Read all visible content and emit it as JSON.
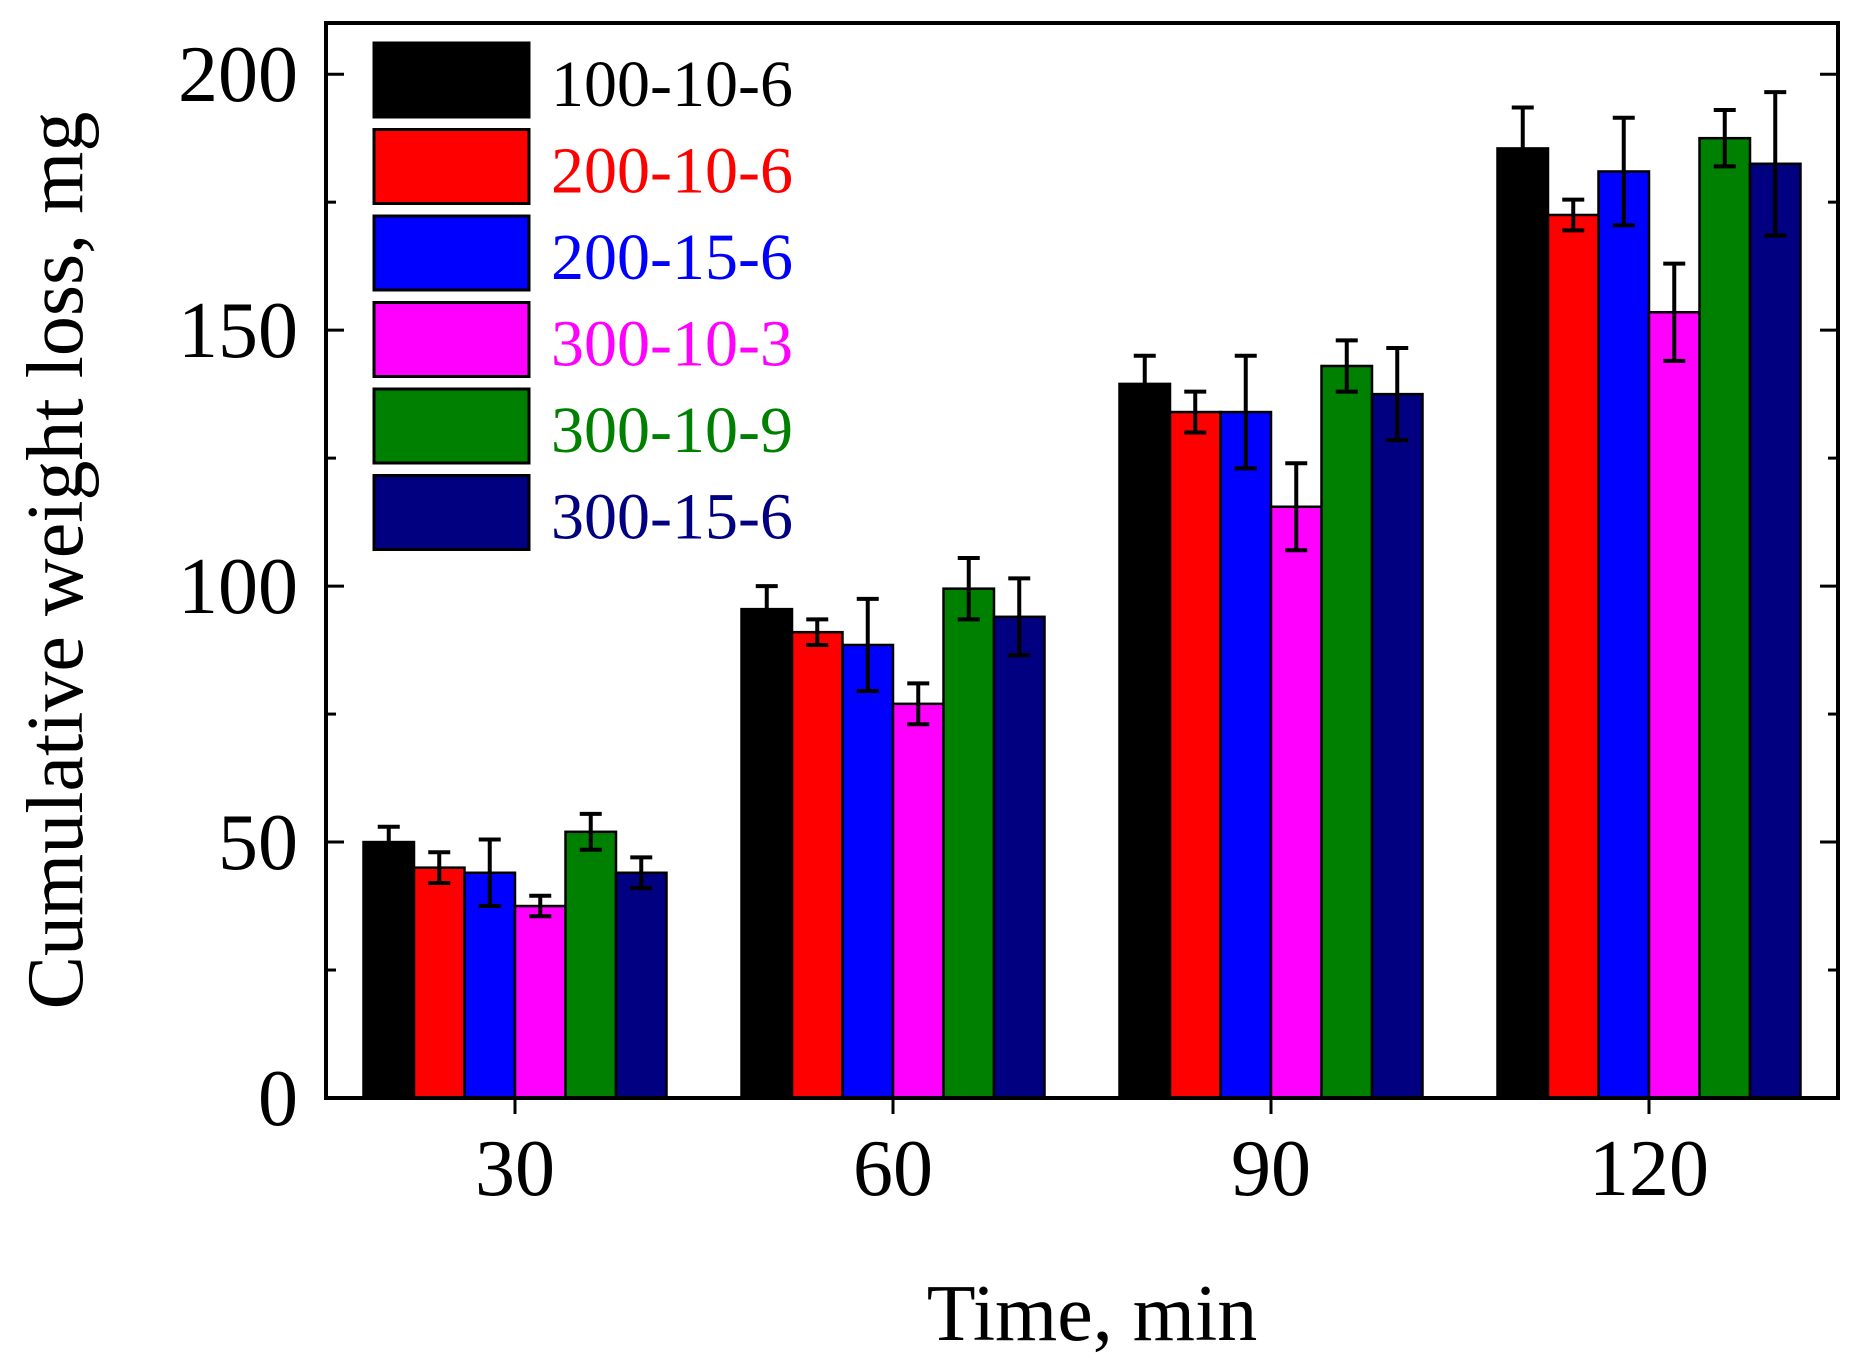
{
  "chart_data": {
    "type": "bar",
    "title": "",
    "xlabel": "Time, min",
    "ylabel": "Cumulative weight loss, mg",
    "categories": [
      "30",
      "60",
      "90",
      "120"
    ],
    "ylim": [
      0,
      210
    ],
    "yticks": [
      "0",
      "50",
      "100",
      "150",
      "200"
    ],
    "grid": false,
    "legend_position": "top-left",
    "series": [
      {
        "name": "100-10-6",
        "color": "#000000",
        "values": [
          50,
          95.5,
          139.5,
          185.5
        ],
        "errors": [
          3,
          4.5,
          5.5,
          8
        ]
      },
      {
        "name": "200-10-6",
        "color": "#ff0000",
        "values": [
          45,
          91,
          134,
          172.5
        ],
        "errors": [
          3,
          2.5,
          4,
          3
        ]
      },
      {
        "name": "200-15-6",
        "color": "#0000ff",
        "values": [
          44,
          88.5,
          134,
          181
        ],
        "errors": [
          6.5,
          9,
          11,
          10.5
        ]
      },
      {
        "name": "300-10-3",
        "color": "#ff00ff",
        "values": [
          37.5,
          77,
          115.5,
          153.5
        ],
        "errors": [
          2,
          4,
          8.5,
          9.5
        ]
      },
      {
        "name": "300-10-9",
        "color": "#008000",
        "values": [
          52,
          99.5,
          143,
          187.5
        ],
        "errors": [
          3.5,
          6,
          5,
          5.5
        ]
      },
      {
        "name": "300-15-6",
        "color": "#000080",
        "values": [
          44,
          94,
          137.5,
          182.5
        ],
        "errors": [
          3,
          7.5,
          9,
          14
        ]
      }
    ]
  }
}
